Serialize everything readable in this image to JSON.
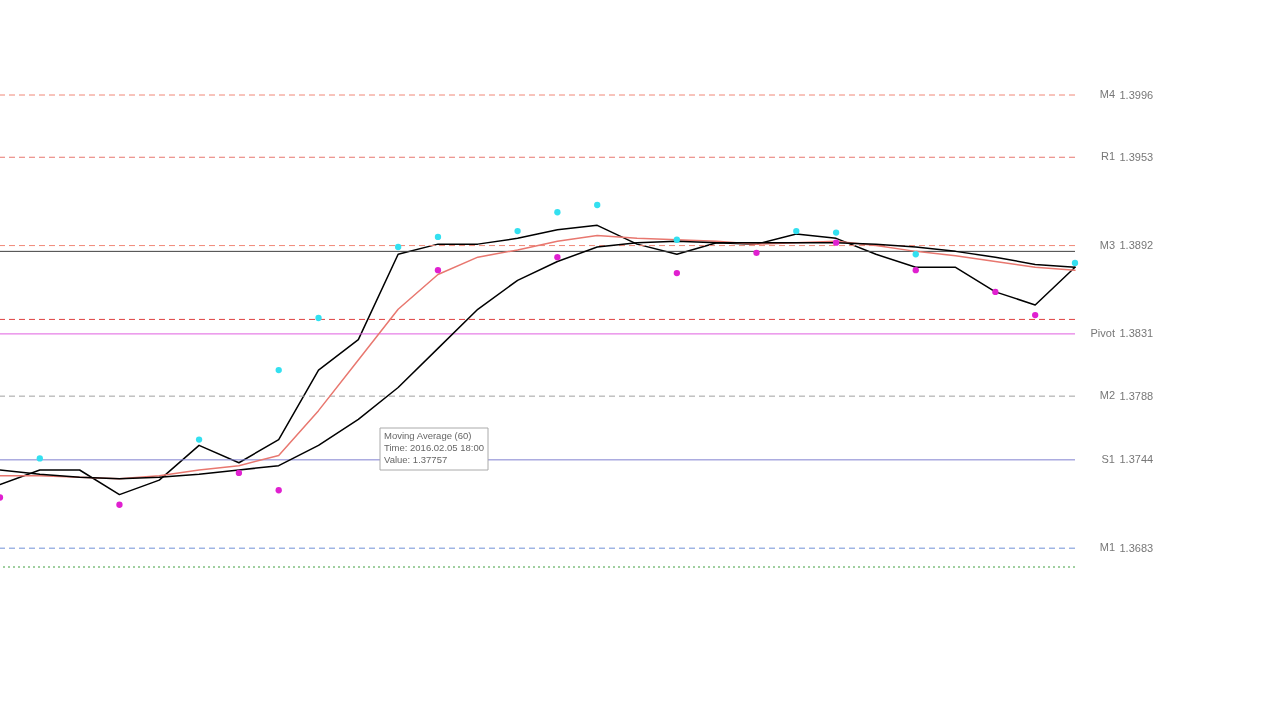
{
  "chart_data": {
    "type": "line",
    "categories": [
      null,
      null,
      null,
      null,
      null,
      null,
      null,
      null,
      null,
      null,
      null,
      null,
      null,
      null,
      null,
      null,
      null,
      null,
      null,
      null,
      null,
      null,
      null,
      null,
      null,
      null,
      null,
      null
    ],
    "ylim": [
      1.367,
      1.3996
    ],
    "tick_labels": "y",
    "yticks": [
      1.3996,
      1.3953,
      1.3892,
      1.3831,
      1.3788,
      1.3744,
      1.3683
    ],
    "series": [
      {
        "color": "#000000",
        "values": [
          1.3727,
          1.3737,
          1.3737,
          1.372,
          1.373,
          1.3754,
          1.3742,
          1.3758,
          1.3806,
          1.3827,
          1.3886,
          1.3893,
          1.3893,
          1.3897,
          1.3903,
          1.3906,
          1.3893,
          1.3886,
          1.3894,
          1.3893,
          1.39,
          1.3897,
          1.3886,
          1.3877,
          1.3877,
          1.386,
          1.3851,
          1.3877
        ]
      },
      {
        "color": "#e8776f",
        "values": [
          1.3733,
          1.3733,
          1.3732,
          1.3731,
          1.3733,
          1.3737,
          1.374,
          1.3747,
          1.3778,
          1.3813,
          1.3848,
          1.3872,
          1.3884,
          1.3889,
          1.3895,
          1.3899,
          1.3897,
          1.3896,
          1.3895,
          1.3893,
          1.3894,
          1.3895,
          1.3892,
          1.3888,
          1.3885,
          1.3881,
          1.3877,
          1.3875
        ]
      },
      {
        "color": "#000000",
        "values": [
          1.3737,
          1.3734,
          1.3732,
          1.3731,
          1.3732,
          1.3734,
          1.3737,
          1.374,
          1.3754,
          1.3772,
          1.3794,
          1.3821,
          1.3848,
          1.3868,
          1.3881,
          1.3891,
          1.3894,
          1.3895,
          1.3894,
          1.3894,
          1.3894,
          1.3894,
          1.3893,
          1.3891,
          1.3888,
          1.3884,
          1.3879,
          1.3877
        ]
      },
      {
        "type": "scatter",
        "marker": "circle",
        "color": "#33e0f0",
        "values": [
          null,
          1.3745,
          null,
          null,
          null,
          1.3758,
          null,
          1.3806,
          1.3842,
          null,
          1.3891,
          1.3898,
          null,
          1.3902,
          1.3915,
          1.392,
          null,
          1.3896,
          null,
          null,
          1.3902,
          1.3901,
          null,
          1.3886,
          null,
          null,
          null,
          1.388
        ]
      },
      {
        "type": "scatter",
        "marker": "circle",
        "color": "#e020d0",
        "values": [
          1.3718,
          null,
          null,
          1.3713,
          null,
          null,
          1.3735,
          1.3723,
          null,
          null,
          null,
          1.3875,
          null,
          null,
          1.3884,
          null,
          null,
          1.3873,
          null,
          1.3887,
          null,
          1.3894,
          null,
          1.3875,
          null,
          1.386,
          1.3844,
          null
        ]
      }
    ],
    "ref_lines": [
      {
        "axis": "y",
        "value": 1.3996,
        "label": "M4",
        "color": "#f08878",
        "line_style": "dashed"
      },
      {
        "axis": "y",
        "value": 1.3953,
        "label": "R1",
        "color": "#e8776f",
        "line_style": "dashed"
      },
      {
        "axis": "y",
        "value": 1.3892,
        "label": "M3",
        "color": "#f08878",
        "line_style": "dashed"
      },
      {
        "axis": "y",
        "value": 1.3831,
        "label": "Pivot",
        "color": "#e060e0",
        "line_style": "solid"
      },
      {
        "axis": "y",
        "value": 1.3788,
        "label": "M2",
        "color": "#a0a0a0",
        "line_style": "dashed"
      },
      {
        "axis": "y",
        "value": 1.3744,
        "label": "S1",
        "color": "#8080d0",
        "line_style": "solid"
      },
      {
        "axis": "y",
        "value": 1.3683,
        "label": "M1",
        "color": "#7090d8",
        "line_style": "dashed"
      },
      {
        "axis": "y",
        "value": 1.3888,
        "color": "#404040",
        "line_style": "solid"
      },
      {
        "axis": "y",
        "value": 1.3841,
        "color": "#e04040",
        "line_style": "dashed"
      },
      {
        "axis": "y",
        "value": 1.367,
        "color": "#40a040",
        "line_style": "dotted"
      }
    ],
    "annotations": [
      "Moving Average (60)",
      "Time: 2016.02.05 18:00",
      "Value: 1.37757"
    ]
  }
}
